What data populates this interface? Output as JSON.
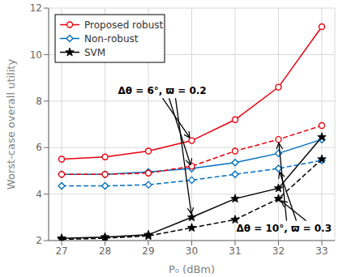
{
  "chart_data": {
    "type": "line",
    "x": [
      27,
      28,
      29,
      30,
      31,
      32,
      33
    ],
    "series": [
      {
        "name": "Proposed robust",
        "color": "#e8000d",
        "values": [
          5.5,
          5.6,
          5.85,
          6.3,
          7.2,
          8.6,
          11.2
        ],
        "line_style": "solid",
        "marker": "circle"
      },
      {
        "name": "Non-robust",
        "color": "#0070c0",
        "values": [
          4.85,
          4.85,
          4.95,
          5.1,
          5.35,
          5.75,
          6.35
        ],
        "line_style": "solid",
        "marker": "diamond"
      },
      {
        "name": "SVM",
        "color": "#000000",
        "values": [
          2.1,
          2.15,
          2.25,
          3.0,
          3.8,
          4.25,
          6.45
        ],
        "line_style": "solid",
        "marker": "star"
      },
      {
        "name": "Proposed robust",
        "color": "#e8000d",
        "values": [
          4.85,
          4.85,
          4.9,
          5.2,
          5.85,
          6.35,
          6.95
        ],
        "line_style": "dashed",
        "marker": "circle"
      },
      {
        "name": "Non-robust",
        "color": "#0070c0",
        "values": [
          4.35,
          4.35,
          4.4,
          4.6,
          4.85,
          5.1,
          5.45
        ],
        "line_style": "dashed",
        "marker": "diamond"
      },
      {
        "name": "SVM",
        "color": "#000000",
        "values": [
          2.05,
          2.1,
          2.2,
          2.55,
          2.9,
          3.8,
          5.5
        ],
        "line_style": "dashed",
        "marker": "star"
      }
    ],
    "xlabel": "P₀ (dBm)",
    "ylabel": "Worst-case overall utility",
    "xlim": [
      26.7,
      33.3
    ],
    "ylim": [
      2,
      12
    ],
    "xticks": [
      27,
      28,
      29,
      30,
      31,
      32,
      33
    ],
    "yticks": [
      2,
      4,
      6,
      8,
      10,
      12
    ],
    "grid": true,
    "legend": "upper left",
    "annotations": [
      {
        "text": "Δθ = 6°, ϖ = 0.2",
        "line_style": "solid"
      },
      {
        "text": "Δθ = 10°, ϖ = 0.3",
        "line_style": "dashed"
      }
    ]
  }
}
